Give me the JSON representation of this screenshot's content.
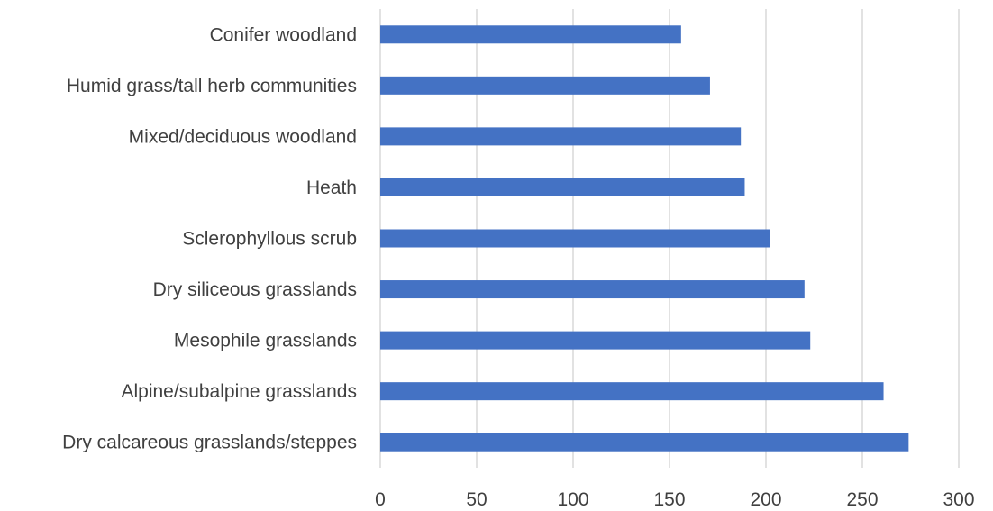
{
  "chart_data": {
    "type": "bar",
    "orientation": "horizontal",
    "title": "",
    "xlabel": "",
    "ylabel": "",
    "categories": [
      "Conifer woodland",
      "Humid grass/tall herb communities",
      "Mixed/deciduous woodland",
      "Heath",
      "Sclerophyllous scrub",
      "Dry siliceous grasslands",
      "Mesophile grasslands",
      "Alpine/subalpine grasslands",
      "Dry calcareous grasslands/steppes"
    ],
    "values": [
      156,
      171,
      187,
      189,
      202,
      220,
      223,
      261,
      274
    ],
    "xlim": [
      0,
      300
    ],
    "x_ticks": [
      "0",
      "50",
      "100",
      "150",
      "200",
      "250",
      "300"
    ],
    "grid": "vertical",
    "legend": "none",
    "bar_color": "#4472C4"
  }
}
